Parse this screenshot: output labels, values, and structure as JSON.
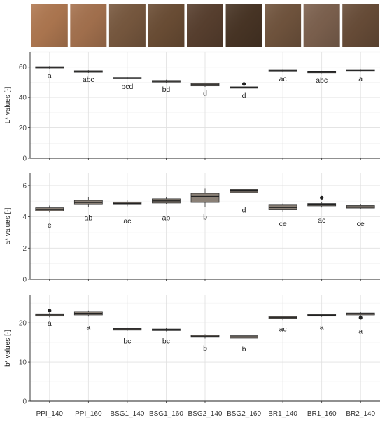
{
  "samples": [
    "PPI_140",
    "PPI_160",
    "BSG1_140",
    "BSG1_160",
    "BSG2_140",
    "BSG2_160",
    "BR1_140",
    "BR1_160",
    "BR2_140"
  ],
  "swatch_colors": [
    "#b27a52",
    "#a87450",
    "#7a5a40",
    "#6d4f36",
    "#5a4130",
    "#4a3626",
    "#73563f",
    "#7f6350",
    "#6a4e39"
  ],
  "chart_data": [
    {
      "type": "box",
      "ylabel": "L* values [-]",
      "ylim": [
        0,
        70
      ],
      "yticks": [
        0,
        20,
        40,
        60
      ],
      "categories": [
        "PPI_140",
        "PPI_160",
        "BSG1_140",
        "BSG1_160",
        "BSG2_140",
        "BSG2_160",
        "BR1_140",
        "BR1_160",
        "BR2_140"
      ],
      "boxes": [
        {
          "q1": 59.4,
          "median": 59.9,
          "q3": 60.3,
          "whisker_low": 59.0,
          "whisker_high": 60.7,
          "outliers": []
        },
        {
          "q1": 56.6,
          "median": 57.1,
          "q3": 57.6,
          "whisker_low": 56.2,
          "whisker_high": 58.0,
          "outliers": []
        },
        {
          "q1": 52.3,
          "median": 52.7,
          "q3": 53.1,
          "whisker_low": 52.0,
          "whisker_high": 53.4,
          "outliers": []
        },
        {
          "q1": 50.1,
          "median": 50.7,
          "q3": 51.2,
          "whisker_low": 49.7,
          "whisker_high": 51.7,
          "outliers": []
        },
        {
          "q1": 47.6,
          "median": 48.4,
          "q3": 49.2,
          "whisker_low": 47.0,
          "whisker_high": 49.8,
          "outliers": []
        },
        {
          "q1": 46.1,
          "median": 46.6,
          "q3": 47.0,
          "whisker_low": 45.8,
          "whisker_high": 47.3,
          "outliers": [
            48.9
          ]
        },
        {
          "q1": 57.0,
          "median": 57.5,
          "q3": 58.0,
          "whisker_low": 56.6,
          "whisker_high": 58.3,
          "outliers": []
        },
        {
          "q1": 56.3,
          "median": 56.8,
          "q3": 57.2,
          "whisker_low": 56.0,
          "whisker_high": 57.6,
          "outliers": []
        },
        {
          "q1": 57.2,
          "median": 57.6,
          "q3": 58.0,
          "whisker_low": 56.9,
          "whisker_high": 58.3,
          "outliers": []
        }
      ],
      "letters": [
        "a",
        "abc",
        "bcd",
        "bd",
        "d",
        "d",
        "ac",
        "abc",
        "a"
      ],
      "letter_y": [
        54.5,
        52.0,
        47.5,
        45.5,
        43.0,
        41.5,
        52.5,
        51.5,
        52.5
      ]
    },
    {
      "type": "box",
      "ylabel": "a* values [-]",
      "ylim": [
        0,
        6.8
      ],
      "yticks": [
        0,
        2,
        4,
        6
      ],
      "categories": [
        "PPI_140",
        "PPI_160",
        "BSG1_140",
        "BSG1_160",
        "BSG2_140",
        "BSG2_160",
        "BR1_140",
        "BR1_160",
        "BR2_140"
      ],
      "boxes": [
        {
          "q1": 4.38,
          "median": 4.47,
          "q3": 4.58,
          "whisker_low": 4.28,
          "whisker_high": 4.72,
          "outliers": []
        },
        {
          "q1": 4.78,
          "median": 4.92,
          "q3": 5.05,
          "whisker_low": 4.65,
          "whisker_high": 5.25,
          "outliers": []
        },
        {
          "q1": 4.78,
          "median": 4.86,
          "q3": 4.95,
          "whisker_low": 4.68,
          "whisker_high": 5.05,
          "outliers": []
        },
        {
          "q1": 4.88,
          "median": 5.02,
          "q3": 5.15,
          "whisker_low": 4.8,
          "whisker_high": 5.28,
          "outliers": []
        },
        {
          "q1": 4.92,
          "median": 5.3,
          "q3": 5.5,
          "whisker_low": 4.65,
          "whisker_high": 5.8,
          "outliers": []
        },
        {
          "q1": 5.55,
          "median": 5.65,
          "q3": 5.75,
          "whisker_low": 5.4,
          "whisker_high": 5.9,
          "outliers": []
        },
        {
          "q1": 4.45,
          "median": 4.6,
          "q3": 4.75,
          "whisker_low": 4.3,
          "whisker_high": 4.85,
          "outliers": []
        },
        {
          "q1": 4.7,
          "median": 4.77,
          "q3": 4.85,
          "whisker_low": 4.6,
          "whisker_high": 4.95,
          "outliers": [
            5.22
          ]
        },
        {
          "q1": 4.56,
          "median": 4.63,
          "q3": 4.72,
          "whisker_low": 4.48,
          "whisker_high": 4.8,
          "outliers": []
        }
      ],
      "letters": [
        "e",
        "ab",
        "ac",
        "ab",
        "b",
        "d",
        "ce",
        "ac",
        "ce"
      ],
      "letter_y": [
        3.48,
        3.95,
        3.75,
        3.95,
        4.0,
        4.45,
        3.58,
        3.8,
        3.58
      ]
    },
    {
      "type": "box",
      "ylabel": "b* values [-]",
      "ylim": [
        0,
        27
      ],
      "yticks": [
        0,
        10,
        20
      ],
      "categories": [
        "PPI_140",
        "PPI_160",
        "BSG1_140",
        "BSG1_160",
        "BSG2_140",
        "BSG2_160",
        "BR1_140",
        "BR1_160",
        "BR2_140"
      ],
      "boxes": [
        {
          "q1": 21.7,
          "median": 22.0,
          "q3": 22.3,
          "whisker_low": 21.4,
          "whisker_high": 22.5,
          "outliers": [
            23.1
          ]
        },
        {
          "q1": 22.0,
          "median": 22.4,
          "q3": 22.9,
          "whisker_low": 21.6,
          "whisker_high": 23.1,
          "outliers": []
        },
        {
          "q1": 18.1,
          "median": 18.4,
          "q3": 18.6,
          "whisker_low": 17.9,
          "whisker_high": 18.8,
          "outliers": []
        },
        {
          "q1": 18.0,
          "median": 18.2,
          "q3": 18.4,
          "whisker_low": 17.8,
          "whisker_high": 18.6,
          "outliers": []
        },
        {
          "q1": 16.3,
          "median": 16.6,
          "q3": 16.9,
          "whisker_low": 16.0,
          "whisker_high": 17.1,
          "outliers": []
        },
        {
          "q1": 16.1,
          "median": 16.4,
          "q3": 16.7,
          "whisker_low": 15.9,
          "whisker_high": 16.9,
          "outliers": []
        },
        {
          "q1": 21.0,
          "median": 21.3,
          "q3": 21.6,
          "whisker_low": 20.7,
          "whisker_high": 21.8,
          "outliers": []
        },
        {
          "q1": 21.7,
          "median": 21.9,
          "q3": 22.1,
          "whisker_low": 21.5,
          "whisker_high": 22.3,
          "outliers": []
        },
        {
          "q1": 22.0,
          "median": 22.3,
          "q3": 22.5,
          "whisker_low": 21.8,
          "whisker_high": 22.7,
          "outliers": [
            21.3
          ]
        }
      ],
      "letters": [
        "a",
        "a",
        "bc",
        "bc",
        "b",
        "b",
        "ac",
        "a",
        "a"
      ],
      "letter_y": [
        20.0,
        19.0,
        15.5,
        15.5,
        13.6,
        13.4,
        18.5,
        19.0,
        18.0
      ]
    }
  ]
}
